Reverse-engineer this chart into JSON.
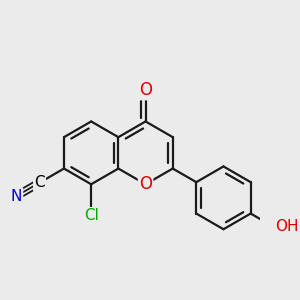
{
  "background_color": "#ebebeb",
  "bond_color": "#1a1a1a",
  "bond_width": 1.6,
  "atom_colors": {
    "O": "#e00000",
    "N": "#0000cc",
    "Cl": "#00aa00"
  },
  "font_size": 12,
  "font_size_small": 11
}
